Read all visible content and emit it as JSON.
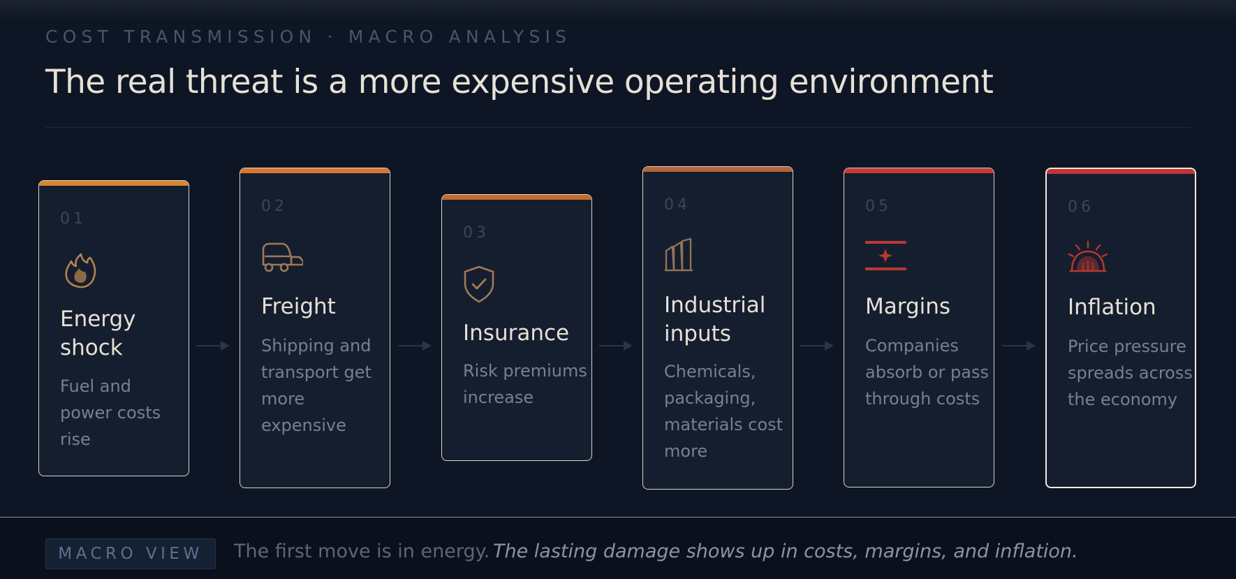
{
  "header": {
    "eyebrow": "COST TRANSMISSION · MACRO ANALYSIS",
    "title": "The real threat is a more expensive operating environment"
  },
  "steps": [
    {
      "number": "01",
      "title": "Energy shock",
      "description": "Fuel and power costs rise",
      "icon": "flame-icon",
      "accent": "#d8862e",
      "icon_color": "#b5834f"
    },
    {
      "number": "02",
      "title": "Freight",
      "description": "Shipping and transport get more expensive",
      "icon": "truck-icon",
      "accent": "#d7782e",
      "icon_color": "#9e7a56"
    },
    {
      "number": "03",
      "title": "Insurance",
      "description": "Risk premiums increase",
      "icon": "shield-check-icon",
      "accent": "#c86a2a",
      "icon_color": "#9e7a56"
    },
    {
      "number": "04",
      "title": "Industrial inputs",
      "description": "Chemicals, packaging, materials cost more",
      "icon": "factory-bars-icon",
      "accent": "#b5653a",
      "icon_color": "#8f7356"
    },
    {
      "number": "05",
      "title": "Margins",
      "description": "Companies absorb or pass through costs",
      "icon": "margin-squeeze-icon",
      "accent": "#c73a34",
      "icon_color": "#b83a30"
    },
    {
      "number": "06",
      "title": "Inflation",
      "description": "Price pressure spreads across the economy",
      "icon": "pressure-dome-icon",
      "accent": "#c7323a",
      "icon_color": "#b8362e"
    }
  ],
  "footer": {
    "badge": "MACRO VIEW",
    "lead": "The first move is in energy.",
    "emphasis": "The lasting damage shows up in costs, margins, and inflation."
  }
}
